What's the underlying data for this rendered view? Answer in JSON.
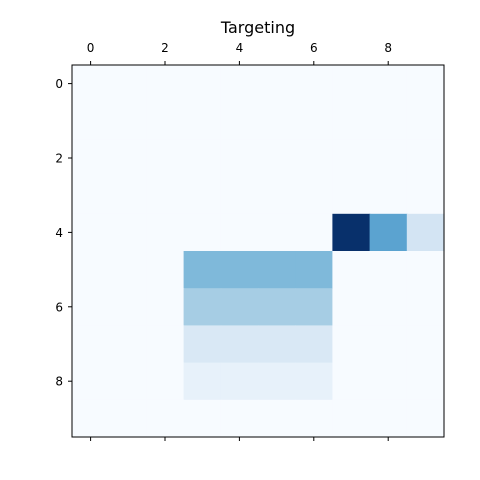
{
  "chart_data": {
    "type": "heatmap",
    "title": "Targeting",
    "xlabel": "",
    "ylabel": "",
    "colormap": "Blues",
    "x_tick_position": "top",
    "x_ticks": [
      0,
      2,
      4,
      6,
      8
    ],
    "y_ticks": [
      0,
      2,
      4,
      6,
      8
    ],
    "x_extent": [
      -0.5,
      9.5
    ],
    "y_extent": [
      -0.5,
      9.5
    ],
    "y_direction": "down",
    "grid": false,
    "legend": "none",
    "vmin": 0,
    "vmax": 1,
    "values": [
      [
        0,
        0,
        0,
        0,
        0,
        0,
        0,
        0,
        0,
        0
      ],
      [
        0,
        0,
        0,
        0,
        0,
        0,
        0,
        0,
        0,
        0
      ],
      [
        0,
        0,
        0,
        0,
        0,
        0,
        0,
        0,
        0,
        0
      ],
      [
        0,
        0,
        0,
        0,
        0,
        0,
        0,
        0,
        0,
        0
      ],
      [
        0,
        0,
        0,
        0,
        0,
        0,
        0,
        1.0,
        0.55,
        0.18
      ],
      [
        0,
        0,
        0,
        0.45,
        0.45,
        0.45,
        0.45,
        0,
        0,
        0
      ],
      [
        0,
        0,
        0,
        0.35,
        0.35,
        0.35,
        0.35,
        0,
        0,
        0
      ],
      [
        0,
        0,
        0,
        0.15,
        0.15,
        0.15,
        0.15,
        0,
        0,
        0
      ],
      [
        0,
        0,
        0,
        0.08,
        0.08,
        0.08,
        0.08,
        0,
        0,
        0
      ],
      [
        0,
        0,
        0,
        0,
        0,
        0,
        0,
        0,
        0,
        0
      ]
    ]
  }
}
